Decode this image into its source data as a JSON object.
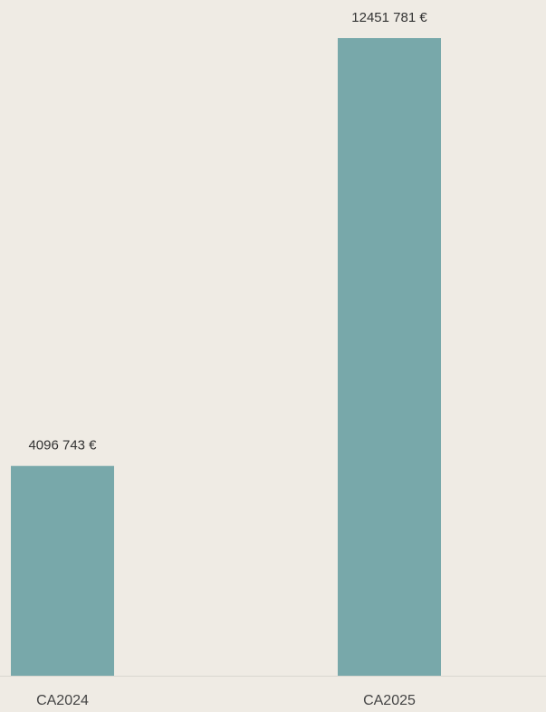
{
  "chart_data": {
    "type": "bar",
    "categories": [
      "CA2024",
      "CA2025"
    ],
    "values": [
      4096743,
      12451781
    ],
    "value_labels": [
      "4096 743 €",
      "12451 781 €"
    ],
    "color": "#78a8aa"
  }
}
